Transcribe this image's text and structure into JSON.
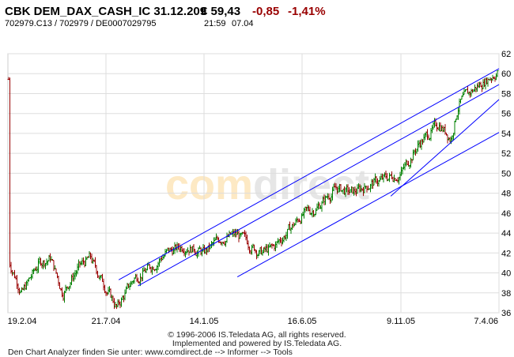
{
  "header": {
    "title": "CBK DEM_DAX_CASH_IC 31.12.209",
    "price": "€ 59,43",
    "change": "-0,85",
    "change_pct": "-1,41%",
    "ids": "702979.C13  /  702979  /  DE0007029795",
    "time": "21:59",
    "date": "07.04"
  },
  "watermark": {
    "part1": "com",
    "part2": "direct"
  },
  "footer": {
    "line1": "© 1996-2006 IS.Teledata AG, all rights reserved.",
    "line2": "Implemented and powered by IS.Teledata AG.",
    "line3": "Den Chart Analyzer finden Sie unter: www.comdirect.de --> Informer --> Tools"
  },
  "colors": {
    "up": "#008000",
    "down": "#990000",
    "trendline": "#0000ff",
    "grid": "#dddddd",
    "watermark_com": "#fde9c4",
    "watermark_direct": "#e6e6e6"
  },
  "chart_data": {
    "type": "ohlc",
    "title": "",
    "xlabel": "",
    "ylabel": "",
    "ylim": [
      36,
      62
    ],
    "y_ticks": [
      36,
      38,
      40,
      42,
      44,
      46,
      48,
      50,
      52,
      54,
      56,
      58,
      60,
      62
    ],
    "x_ticks": [
      {
        "label": "19.2.04",
        "date": "2004-02-19"
      },
      {
        "label": "21.7.04",
        "date": "2004-07-21"
      },
      {
        "label": "14.1.05",
        "date": "2005-01-14"
      },
      {
        "label": "16.6.05",
        "date": "2005-06-16"
      },
      {
        "label": "9.11.05",
        "date": "2005-11-09"
      },
      {
        "label": "7.4.06",
        "date": "2006-04-07"
      }
    ],
    "y_axis_position": "right",
    "grid": true,
    "close_series": [
      [
        "2004-01-26",
        41.2
      ],
      [
        "2004-02-19",
        38.0
      ],
      [
        "2004-03-21",
        41.0
      ],
      [
        "2004-04-11",
        41.5
      ],
      [
        "2004-05-03",
        38.0
      ],
      [
        "2004-05-31",
        40.5
      ],
      [
        "2004-06-22",
        41.5
      ],
      [
        "2004-07-21",
        38.5
      ],
      [
        "2004-08-10",
        36.5
      ],
      [
        "2004-09-10",
        39.5
      ],
      [
        "2004-10-09",
        40.5
      ],
      [
        "2004-11-06",
        42.0
      ],
      [
        "2004-12-12",
        42.8
      ],
      [
        "2005-01-14",
        42.0
      ],
      [
        "2005-02-10",
        43.5
      ],
      [
        "2005-03-07",
        43.8
      ],
      [
        "2005-04-13",
        42.0
      ],
      [
        "2005-05-02",
        42.5
      ],
      [
        "2005-06-16",
        45.8
      ],
      [
        "2005-07-07",
        46.5
      ],
      [
        "2005-08-05",
        48.5
      ],
      [
        "2005-08-29",
        48.0
      ],
      [
        "2005-09-27",
        49.0
      ],
      [
        "2005-11-09",
        50.0
      ],
      [
        "2005-12-07",
        53.0
      ],
      [
        "2006-01-06",
        55.0
      ],
      [
        "2006-01-24",
        53.5
      ],
      [
        "2006-02-05",
        57.0
      ],
      [
        "2006-03-01",
        58.5
      ],
      [
        "2006-04-06",
        60.3
      ],
      [
        "2006-04-07",
        59.43
      ]
    ],
    "trendlines": [
      {
        "from": [
          "2004-08-13",
          39.3
        ],
        "to": [
          "2006-04-07",
          60.5
        ]
      },
      {
        "from": [
          "2004-09-17",
          38.7
        ],
        "to": [
          "2006-04-07",
          58.9
        ]
      },
      {
        "from": [
          "2005-03-07",
          39.6
        ],
        "to": [
          "2006-04-07",
          54.1
        ]
      },
      {
        "from": [
          "2005-10-25",
          47.7
        ],
        "to": [
          "2006-04-07",
          57.4
        ]
      }
    ]
  }
}
